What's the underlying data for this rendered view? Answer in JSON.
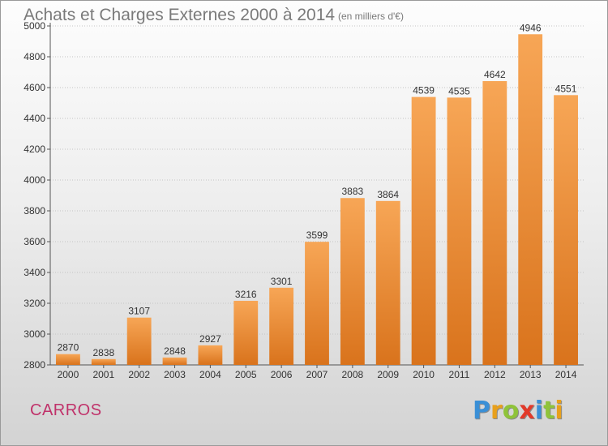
{
  "title": "Achats et Charges Externes 2000 à 2014",
  "subtitle": "(en milliers d'€)",
  "city": "CARROS",
  "logo": {
    "letters": [
      "P",
      "r",
      "o",
      "x",
      "i",
      "t",
      "i"
    ],
    "colors": [
      "#3a8fd6",
      "#e8a01c",
      "#8fc33a",
      "#e23a2a",
      "#3a8fd6",
      "#8fc33a",
      "#e8a01c"
    ]
  },
  "colors": {
    "bar_top": "#f7a656",
    "bar_bottom": "#d9731c",
    "title": "#7a7a7a",
    "city": "#c0326a"
  },
  "chart_data": {
    "type": "bar",
    "categories": [
      "2000",
      "2001",
      "2002",
      "2003",
      "2004",
      "2005",
      "2006",
      "2007",
      "2008",
      "2009",
      "2010",
      "2011",
      "2012",
      "2013",
      "2014"
    ],
    "values": [
      2870,
      2838,
      3107,
      2848,
      2927,
      3216,
      3301,
      3599,
      3883,
      3864,
      4539,
      4535,
      4642,
      4946,
      4551
    ],
    "yticks": [
      2800,
      3000,
      3200,
      3400,
      3600,
      3800,
      4000,
      4200,
      4400,
      4600,
      4800,
      5000
    ],
    "ylim": [
      2800,
      5000
    ],
    "grid": true,
    "data_labels": true
  }
}
